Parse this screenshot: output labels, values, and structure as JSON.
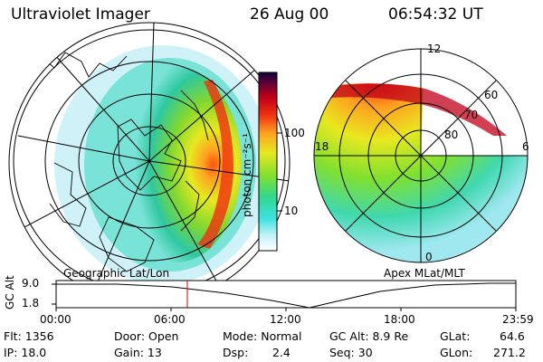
{
  "header": {
    "instrument": "Ultraviolet Imager",
    "date": "26 Aug 00",
    "time": "06:54:32 UT"
  },
  "colorbar": {
    "unit_label": "photon cm⁻²s⁻¹",
    "ticks": [
      "100",
      "10"
    ],
    "colors": [
      "#ffffff",
      "#c8f4f8",
      "#40e0e0",
      "#30d890",
      "#80e030",
      "#e8e820",
      "#ffa020",
      "#f03010",
      "#c00018",
      "#60003a",
      "#10003a"
    ]
  },
  "left_map": {
    "caption": "Geographic Lat/Lon"
  },
  "right_map": {
    "caption": "Apex MLat/MLT",
    "mlt_labels": {
      "top": "12",
      "left": "18",
      "right": "6",
      "bottom": "0"
    },
    "lat_labels": [
      "60",
      "70",
      "80"
    ]
  },
  "timeline": {
    "axis_label": "GC Alt",
    "y_ticks": [
      "9.0",
      "1.8"
    ],
    "x_ticks": [
      "00:00",
      "06:00",
      "12:00",
      "18:00",
      "23:59"
    ],
    "marker_color": "#d00000"
  },
  "footer": {
    "flt": "Flt: 1356",
    "ip": "IP: 18.0",
    "door": "Door: Open",
    "gain": "Gain: 13",
    "mode": "Mode: Normal",
    "dsp_label": "Dsp:",
    "dsp_value": "2.4",
    "gc_alt": "GC Alt: 8.9 Re",
    "seq": "Seq: 30",
    "glat_label": "GLat:",
    "glat_value": "64.6",
    "glon_label": "GLon:",
    "glon_value": "271.2"
  }
}
